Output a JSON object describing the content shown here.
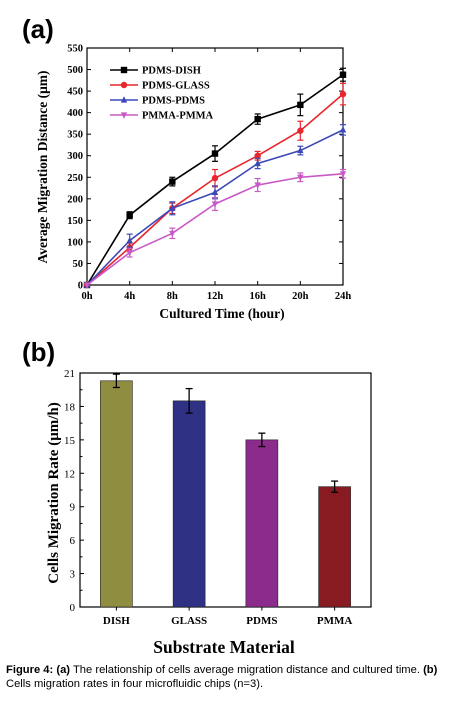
{
  "chart_data": [
    {
      "panel_label": "(a)",
      "type": "line",
      "xlabel": "Cultured Time (hour)",
      "ylabel": "Average Migration Distance (μm)",
      "categories": [
        "0h",
        "4h",
        "8h",
        "12h",
        "16h",
        "20h",
        "24h"
      ],
      "ylim": [
        0,
        550
      ],
      "yticks": [
        0,
        50,
        100,
        150,
        200,
        250,
        300,
        350,
        400,
        450,
        500,
        550
      ],
      "legend_position": "top-left",
      "grid": false,
      "series": [
        {
          "name": "PDMS-DISH",
          "color": "#000000",
          "marker": "square",
          "values": [
            0,
            162,
            240,
            305,
            385,
            418,
            488
          ],
          "errors": [
            0,
            8,
            10,
            18,
            12,
            25,
            15
          ]
        },
        {
          "name": "PDMS-GLASS",
          "color": "#e8262b",
          "marker": "circle",
          "values": [
            0,
            87,
            178,
            248,
            300,
            358,
            443
          ],
          "errors": [
            0,
            10,
            12,
            20,
            10,
            22,
            25
          ]
        },
        {
          "name": "PDMS-PDMS",
          "color": "#3c48b8",
          "marker": "triangle-up",
          "values": [
            0,
            103,
            178,
            215,
            282,
            312,
            360
          ],
          "errors": [
            0,
            15,
            15,
            15,
            12,
            10,
            12
          ]
        },
        {
          "name": "PMMA-PMMA",
          "color": "#c85ac8",
          "marker": "triangle-down",
          "values": [
            0,
            75,
            120,
            188,
            232,
            250,
            258
          ],
          "errors": [
            0,
            10,
            12,
            15,
            15,
            10,
            10
          ]
        }
      ]
    },
    {
      "panel_label": "(b)",
      "type": "bar",
      "xlabel": "Substrate Material",
      "ylabel": "Cells Migration Rate (μm/h)",
      "categories": [
        "DISH",
        "GLASS",
        "PDMS",
        "PMMA"
      ],
      "values": [
        20.3,
        18.5,
        15.0,
        10.8
      ],
      "errors": [
        0.6,
        1.1,
        0.6,
        0.5
      ],
      "colors": [
        "#8f8d3f",
        "#2f3185",
        "#8b2b8b",
        "#881a22"
      ],
      "ylim": [
        0,
        21
      ],
      "yticks": [
        0,
        3,
        6,
        9,
        12,
        15,
        18,
        21
      ],
      "grid": false
    }
  ],
  "caption": {
    "prefix": "Figure 4:",
    "a_label": "(a)",
    "a_text": " The relationship of cells average migration distance and cultured time. ",
    "b_label": "(b)",
    "b_text": " Cells migration rates in four microfluidic chips (n=3)."
  }
}
